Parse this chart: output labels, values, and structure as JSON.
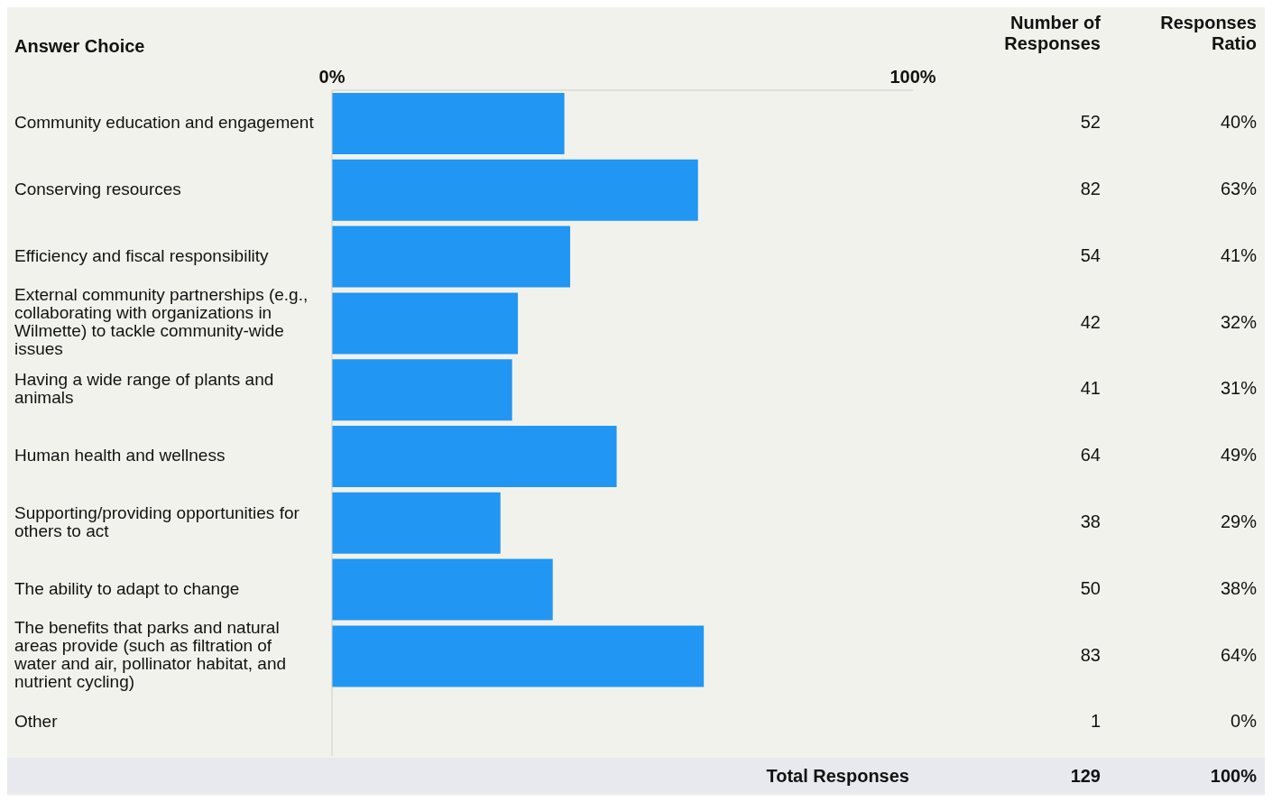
{
  "chart_data": {
    "type": "bar",
    "orientation": "horizontal",
    "ylabel": "Answer Choice",
    "categories": [
      "Community education and engagement",
      "Conserving resources",
      "Efficiency and fiscal responsibility",
      "External community partnerships (e.g., collaborating with organizations in Wilmette) to tackle community-wide issues",
      "Having a wide range of plants and animals",
      "Human health and wellness",
      "Supporting/providing opportunities for others to act",
      "The ability to adapt to change",
      "The benefits that parks and natural areas provide (such as filtration of water and air, pollinator habitat, and nutrient cycling)",
      "Other"
    ],
    "series": [
      {
        "color": "#2196f3",
        "values": [
          40,
          63,
          41,
          32,
          31,
          49,
          29,
          38,
          64,
          0
        ]
      }
    ],
    "xlim": [
      0,
      100
    ],
    "xticks": [
      {
        "value": 0,
        "label": "0%"
      },
      {
        "value": 100,
        "label": "100%"
      }
    ],
    "grid": false,
    "legend": false,
    "annotations": [
      "Number of Responses",
      "Responses Ratio",
      "52",
      "40%",
      "82",
      "63%",
      "54",
      "41%",
      "42",
      "32%",
      "41",
      "31%",
      "64",
      "49%",
      "38",
      "29%",
      "50",
      "38%",
      "83",
      "64%",
      "1",
      "0%",
      "Total Responses",
      "129",
      "100%"
    ]
  }
}
